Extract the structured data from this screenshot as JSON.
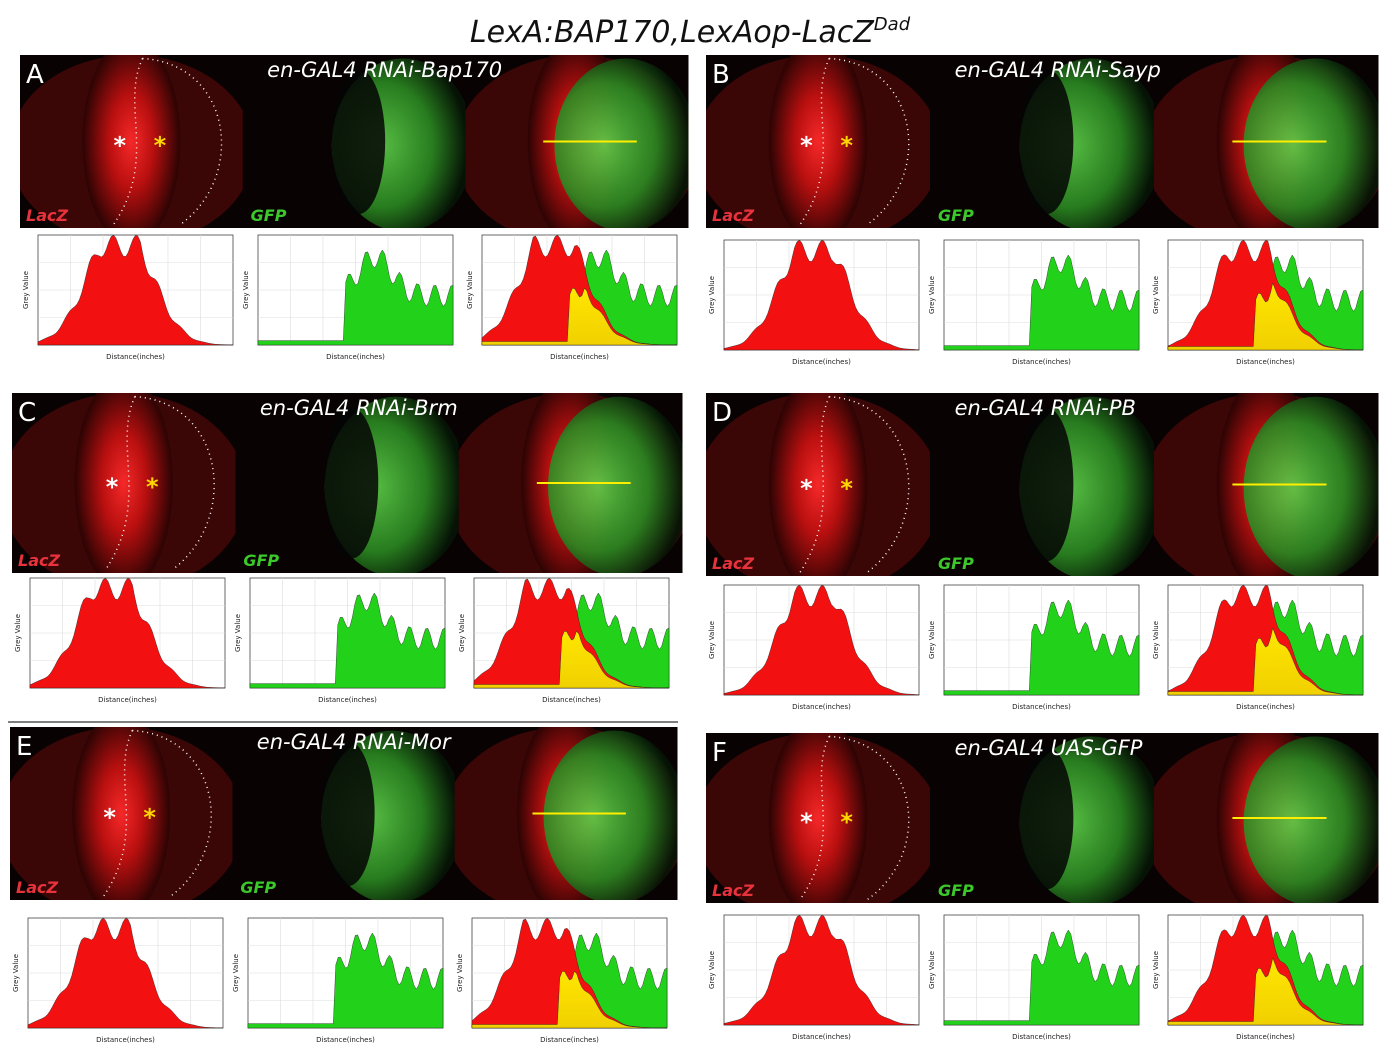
{
  "title": {
    "main": "LexA:BAP170,LexAop-LacZ",
    "sup": "Dad"
  },
  "panels": [
    {
      "letter": "A",
      "title": "en-GAL4 RNAi-Bap170",
      "lacz_label": "LacZ",
      "gfp_label": "GFP",
      "asterisks": [
        "*",
        "*"
      ],
      "plots": [
        {
          "ylabel": "Grey Value",
          "xlabel": "Distance(inches)"
        },
        {
          "ylabel": "Grey Value",
          "xlabel": "Distance(inches)"
        },
        {
          "ylabel": "Grey Value",
          "xlabel": "Distance(inches)"
        }
      ]
    },
    {
      "letter": "B",
      "title": "en-GAL4 RNAi-Sayp",
      "lacz_label": "LacZ",
      "gfp_label": "GFP",
      "asterisks": [
        "*",
        "*"
      ],
      "plots": [
        {
          "ylabel": "Grey Value",
          "xlabel": "Distance(inches)"
        },
        {
          "ylabel": "Grey Value",
          "xlabel": "Distance(inches)"
        },
        {
          "ylabel": "Grey Value",
          "xlabel": "Distance(inches)"
        }
      ]
    },
    {
      "letter": "C",
      "title": "en-GAL4 RNAi-Brm",
      "lacz_label": "LacZ",
      "gfp_label": "GFP",
      "asterisks": [
        "*",
        "*"
      ],
      "plots": [
        {
          "ylabel": "Grey Value",
          "xlabel": "Distance(inches)"
        },
        {
          "ylabel": "Grey Value",
          "xlabel": "Distance(inches)"
        },
        {
          "ylabel": "Grey Value",
          "xlabel": "Distance(inches)"
        }
      ]
    },
    {
      "letter": "D",
      "title": "en-GAL4 RNAi-PB",
      "lacz_label": "LacZ",
      "gfp_label": "GFP",
      "asterisks": [
        "*",
        "*"
      ],
      "plots": [
        {
          "ylabel": "Grey Value",
          "xlabel": "Distance(inches)"
        },
        {
          "ylabel": "Grey Value",
          "xlabel": "Distance(inches)"
        },
        {
          "ylabel": "Grey Value",
          "xlabel": "Distance(inches)"
        }
      ]
    },
    {
      "letter": "E",
      "title": "en-GAL4 RNAi-Mor",
      "lacz_label": "LacZ",
      "gfp_label": "GFP",
      "asterisks": [
        "*",
        "*"
      ],
      "plots": [
        {
          "ylabel": "Grey Value",
          "xlabel": "Distance(inches)"
        },
        {
          "ylabel": "Grey Value",
          "xlabel": "Distance(inches)"
        },
        {
          "ylabel": "Grey Value",
          "xlabel": "Distance(inches)"
        }
      ]
    },
    {
      "letter": "F",
      "title": "en-GAL4 UAS-GFP",
      "lacz_label": "LacZ",
      "gfp_label": "GFP",
      "asterisks": [
        "*",
        "*"
      ],
      "plots": [
        {
          "ylabel": "Grey Value",
          "xlabel": "Distance(inches)"
        },
        {
          "ylabel": "Grey Value",
          "xlabel": "Distance(inches)"
        },
        {
          "ylabel": "Grey Value",
          "xlabel": "Distance(inches)"
        }
      ]
    }
  ]
}
